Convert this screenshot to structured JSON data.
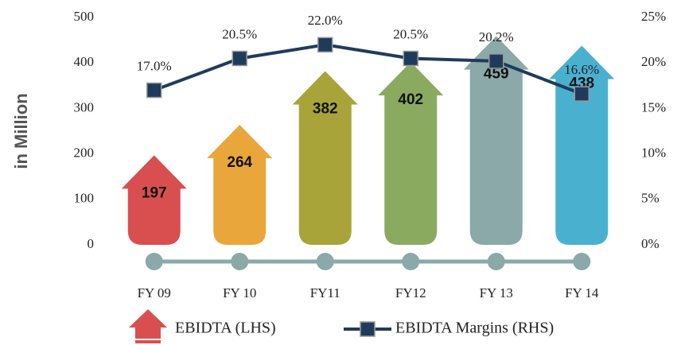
{
  "chart_data": {
    "type": "bar",
    "ylabel": "in Million",
    "categories": [
      "FY 09",
      "FY 10",
      "FY11",
      "FY12",
      "FY 13",
      "FY 14"
    ],
    "series": [
      {
        "name": "EBIDTA (LHS)",
        "type": "bar",
        "colors": [
          "#d94f4f",
          "#e9a63a",
          "#a8a43a",
          "#8aaa60",
          "#8aa9a8",
          "#4ab0d0"
        ],
        "values": [
          197,
          264,
          382,
          402,
          459,
          438
        ]
      },
      {
        "name": "EBIDTA Margins (RHS)",
        "type": "line",
        "axis": "y2",
        "color": "#1f3b5c",
        "values": [
          17.0,
          20.5,
          22.0,
          20.5,
          20.2,
          16.6
        ],
        "value_labels": [
          "17.0%",
          "20.5%",
          "22.0%",
          "20.5%",
          "20.2%",
          "16.6%"
        ]
      }
    ],
    "ylim": [
      0,
      500
    ],
    "yticks": [
      0,
      100,
      200,
      300,
      400,
      500
    ],
    "y2lim": [
      0,
      25
    ],
    "y2ticks": [
      {
        "value": 0,
        "label": "0%"
      },
      {
        "value": 5,
        "label": "5%"
      },
      {
        "value": 10,
        "label": "10%"
      },
      {
        "value": 15,
        "label": "15%"
      },
      {
        "value": 20,
        "label": "20%"
      },
      {
        "value": 25,
        "label": "25%"
      }
    ],
    "grid": false
  }
}
